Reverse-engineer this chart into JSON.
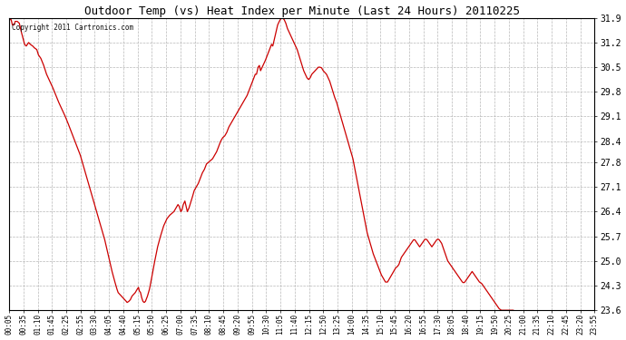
{
  "title": "Outdoor Temp (vs) Heat Index per Minute (Last 24 Hours) 20110225",
  "copyright_text": "Copyright 2011 Cartronics.com",
  "line_color": "#cc0000",
  "background_color": "#ffffff",
  "grid_color": "#b0b0b0",
  "ylim": [
    23.6,
    31.9
  ],
  "yticks": [
    23.6,
    24.3,
    25.0,
    25.7,
    26.4,
    27.1,
    27.8,
    28.4,
    29.1,
    29.8,
    30.5,
    31.2,
    31.9
  ],
  "xtick_labels": [
    "00:05",
    "00:35",
    "01:10",
    "01:45",
    "02:25",
    "02:55",
    "03:30",
    "04:05",
    "04:40",
    "05:15",
    "05:50",
    "06:25",
    "07:00",
    "07:35",
    "08:10",
    "08:45",
    "09:20",
    "09:55",
    "10:30",
    "11:05",
    "11:40",
    "12:15",
    "12:50",
    "13:25",
    "14:00",
    "14:35",
    "15:10",
    "15:45",
    "16:20",
    "16:55",
    "17:30",
    "18:05",
    "18:40",
    "19:15",
    "19:50",
    "20:25",
    "21:00",
    "21:35",
    "22:10",
    "22:45",
    "23:20",
    "23:55"
  ],
  "control_points": [
    [
      0,
      31.85
    ],
    [
      5,
      31.85
    ],
    [
      8,
      31.7
    ],
    [
      12,
      31.7
    ],
    [
      15,
      31.8
    ],
    [
      20,
      31.8
    ],
    [
      25,
      31.75
    ],
    [
      30,
      31.5
    ],
    [
      38,
      31.15
    ],
    [
      42,
      31.1
    ],
    [
      48,
      31.2
    ],
    [
      52,
      31.15
    ],
    [
      58,
      31.1
    ],
    [
      62,
      31.05
    ],
    [
      68,
      31.0
    ],
    [
      72,
      30.85
    ],
    [
      78,
      30.75
    ],
    [
      85,
      30.55
    ],
    [
      92,
      30.3
    ],
    [
      100,
      30.1
    ],
    [
      108,
      29.9
    ],
    [
      115,
      29.7
    ],
    [
      122,
      29.5
    ],
    [
      130,
      29.3
    ],
    [
      138,
      29.1
    ],
    [
      145,
      28.9
    ],
    [
      155,
      28.6
    ],
    [
      165,
      28.3
    ],
    [
      175,
      28.0
    ],
    [
      185,
      27.6
    ],
    [
      195,
      27.2
    ],
    [
      205,
      26.8
    ],
    [
      215,
      26.4
    ],
    [
      225,
      26.0
    ],
    [
      235,
      25.6
    ],
    [
      245,
      25.1
    ],
    [
      253,
      24.7
    ],
    [
      260,
      24.4
    ],
    [
      265,
      24.2
    ],
    [
      268,
      24.1
    ],
    [
      272,
      24.05
    ],
    [
      276,
      24.0
    ],
    [
      280,
      23.95
    ],
    [
      284,
      23.9
    ],
    [
      288,
      23.85
    ],
    [
      290,
      23.82
    ],
    [
      294,
      23.85
    ],
    [
      298,
      23.9
    ],
    [
      302,
      24.0
    ],
    [
      306,
      24.05
    ],
    [
      310,
      24.1
    ],
    [
      315,
      24.2
    ],
    [
      318,
      24.25
    ],
    [
      320,
      24.15
    ],
    [
      323,
      24.1
    ],
    [
      326,
      23.95
    ],
    [
      329,
      23.85
    ],
    [
      332,
      23.82
    ],
    [
      335,
      23.85
    ],
    [
      340,
      24.0
    ],
    [
      345,
      24.2
    ],
    [
      350,
      24.5
    ],
    [
      358,
      25.0
    ],
    [
      365,
      25.4
    ],
    [
      372,
      25.7
    ],
    [
      380,
      26.0
    ],
    [
      388,
      26.2
    ],
    [
      395,
      26.3
    ],
    [
      400,
      26.35
    ],
    [
      405,
      26.4
    ],
    [
      410,
      26.5
    ],
    [
      415,
      26.6
    ],
    [
      418,
      26.55
    ],
    [
      422,
      26.4
    ],
    [
      425,
      26.45
    ],
    [
      428,
      26.6
    ],
    [
      432,
      26.7
    ],
    [
      435,
      26.55
    ],
    [
      438,
      26.4
    ],
    [
      442,
      26.5
    ],
    [
      446,
      26.65
    ],
    [
      450,
      26.8
    ],
    [
      455,
      27.0
    ],
    [
      460,
      27.1
    ],
    [
      465,
      27.2
    ],
    [
      470,
      27.35
    ],
    [
      475,
      27.5
    ],
    [
      480,
      27.6
    ],
    [
      485,
      27.75
    ],
    [
      490,
      27.8
    ],
    [
      495,
      27.85
    ],
    [
      500,
      27.9
    ],
    [
      505,
      28.0
    ],
    [
      510,
      28.1
    ],
    [
      515,
      28.25
    ],
    [
      520,
      28.4
    ],
    [
      525,
      28.5
    ],
    [
      530,
      28.55
    ],
    [
      535,
      28.65
    ],
    [
      540,
      28.8
    ],
    [
      545,
      28.9
    ],
    [
      550,
      29.0
    ],
    [
      555,
      29.1
    ],
    [
      560,
      29.2
    ],
    [
      565,
      29.3
    ],
    [
      570,
      29.4
    ],
    [
      575,
      29.5
    ],
    [
      580,
      29.6
    ],
    [
      585,
      29.7
    ],
    [
      590,
      29.85
    ],
    [
      595,
      30.0
    ],
    [
      600,
      30.15
    ],
    [
      605,
      30.3
    ],
    [
      608,
      30.3
    ],
    [
      612,
      30.5
    ],
    [
      615,
      30.55
    ],
    [
      618,
      30.4
    ],
    [
      622,
      30.5
    ],
    [
      626,
      30.6
    ],
    [
      630,
      30.7
    ],
    [
      635,
      30.85
    ],
    [
      640,
      31.0
    ],
    [
      645,
      31.15
    ],
    [
      648,
      31.1
    ],
    [
      652,
      31.3
    ],
    [
      656,
      31.5
    ],
    [
      660,
      31.7
    ],
    [
      664,
      31.8
    ],
    [
      668,
      31.88
    ],
    [
      672,
      31.9
    ],
    [
      676,
      31.85
    ],
    [
      680,
      31.75
    ],
    [
      684,
      31.6
    ],
    [
      688,
      31.5
    ],
    [
      692,
      31.4
    ],
    [
      696,
      31.3
    ],
    [
      700,
      31.2
    ],
    [
      704,
      31.1
    ],
    [
      708,
      31.0
    ],
    [
      712,
      30.85
    ],
    [
      716,
      30.7
    ],
    [
      720,
      30.55
    ],
    [
      724,
      30.4
    ],
    [
      728,
      30.3
    ],
    [
      732,
      30.2
    ],
    [
      736,
      30.15
    ],
    [
      740,
      30.2
    ],
    [
      744,
      30.3
    ],
    [
      748,
      30.35
    ],
    [
      752,
      30.4
    ],
    [
      756,
      30.45
    ],
    [
      760,
      30.5
    ],
    [
      764,
      30.5
    ],
    [
      768,
      30.48
    ],
    [
      772,
      30.4
    ],
    [
      776,
      30.35
    ],
    [
      780,
      30.3
    ],
    [
      784,
      30.2
    ],
    [
      788,
      30.1
    ],
    [
      792,
      29.95
    ],
    [
      796,
      29.8
    ],
    [
      800,
      29.65
    ],
    [
      805,
      29.5
    ],
    [
      810,
      29.3
    ],
    [
      815,
      29.1
    ],
    [
      820,
      28.9
    ],
    [
      825,
      28.7
    ],
    [
      830,
      28.5
    ],
    [
      835,
      28.3
    ],
    [
      840,
      28.1
    ],
    [
      845,
      27.9
    ],
    [
      850,
      27.6
    ],
    [
      855,
      27.3
    ],
    [
      860,
      27.0
    ],
    [
      865,
      26.7
    ],
    [
      870,
      26.4
    ],
    [
      875,
      26.1
    ],
    [
      880,
      25.8
    ],
    [
      885,
      25.6
    ],
    [
      890,
      25.4
    ],
    [
      895,
      25.2
    ],
    [
      900,
      25.05
    ],
    [
      905,
      24.9
    ],
    [
      910,
      24.75
    ],
    [
      915,
      24.6
    ],
    [
      920,
      24.5
    ],
    [
      925,
      24.4
    ],
    [
      930,
      24.4
    ],
    [
      935,
      24.5
    ],
    [
      940,
      24.6
    ],
    [
      945,
      24.7
    ],
    [
      950,
      24.8
    ],
    [
      955,
      24.85
    ],
    [
      958,
      24.9
    ],
    [
      961,
      25.0
    ],
    [
      964,
      25.1
    ],
    [
      967,
      25.15
    ],
    [
      970,
      25.2
    ],
    [
      973,
      25.25
    ],
    [
      976,
      25.3
    ],
    [
      979,
      25.35
    ],
    [
      982,
      25.4
    ],
    [
      985,
      25.45
    ],
    [
      988,
      25.5
    ],
    [
      991,
      25.55
    ],
    [
      994,
      25.6
    ],
    [
      997,
      25.6
    ],
    [
      1000,
      25.55
    ],
    [
      1003,
      25.5
    ],
    [
      1006,
      25.45
    ],
    [
      1009,
      25.4
    ],
    [
      1012,
      25.45
    ],
    [
      1015,
      25.5
    ],
    [
      1018,
      25.55
    ],
    [
      1021,
      25.6
    ],
    [
      1024,
      25.62
    ],
    [
      1027,
      25.6
    ],
    [
      1030,
      25.55
    ],
    [
      1033,
      25.5
    ],
    [
      1036,
      25.45
    ],
    [
      1039,
      25.4
    ],
    [
      1042,
      25.45
    ],
    [
      1045,
      25.5
    ],
    [
      1048,
      25.55
    ],
    [
      1051,
      25.6
    ],
    [
      1054,
      25.62
    ],
    [
      1057,
      25.6
    ],
    [
      1060,
      25.55
    ],
    [
      1063,
      25.5
    ],
    [
      1066,
      25.4
    ],
    [
      1069,
      25.3
    ],
    [
      1072,
      25.2
    ],
    [
      1075,
      25.1
    ],
    [
      1078,
      25.0
    ],
    [
      1081,
      24.95
    ],
    [
      1084,
      24.9
    ],
    [
      1087,
      24.85
    ],
    [
      1090,
      24.8
    ],
    [
      1093,
      24.75
    ],
    [
      1096,
      24.7
    ],
    [
      1099,
      24.65
    ],
    [
      1102,
      24.6
    ],
    [
      1105,
      24.55
    ],
    [
      1108,
      24.5
    ],
    [
      1111,
      24.45
    ],
    [
      1114,
      24.4
    ],
    [
      1117,
      24.38
    ],
    [
      1120,
      24.4
    ],
    [
      1123,
      24.45
    ],
    [
      1126,
      24.5
    ],
    [
      1129,
      24.55
    ],
    [
      1132,
      24.6
    ],
    [
      1135,
      24.65
    ],
    [
      1138,
      24.7
    ],
    [
      1141,
      24.65
    ],
    [
      1144,
      24.6
    ],
    [
      1147,
      24.55
    ],
    [
      1150,
      24.5
    ],
    [
      1153,
      24.45
    ],
    [
      1156,
      24.4
    ],
    [
      1159,
      24.38
    ],
    [
      1162,
      24.35
    ],
    [
      1165,
      24.3
    ],
    [
      1168,
      24.25
    ],
    [
      1171,
      24.2
    ],
    [
      1174,
      24.15
    ],
    [
      1177,
      24.1
    ],
    [
      1180,
      24.05
    ],
    [
      1183,
      24.0
    ],
    [
      1186,
      23.95
    ],
    [
      1189,
      23.9
    ],
    [
      1192,
      23.85
    ],
    [
      1195,
      23.8
    ],
    [
      1198,
      23.75
    ],
    [
      1201,
      23.7
    ],
    [
      1204,
      23.65
    ],
    [
      1207,
      23.62
    ],
    [
      1210,
      23.6
    ],
    [
      1215,
      23.6
    ],
    [
      1220,
      23.6
    ],
    [
      1225,
      23.6
    ],
    [
      1230,
      23.6
    ],
    [
      1235,
      23.6
    ],
    [
      1239,
      23.6
    ]
  ]
}
